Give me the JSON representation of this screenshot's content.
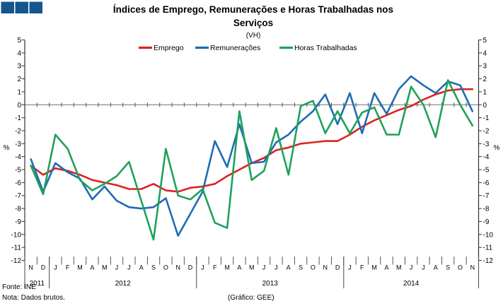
{
  "logo": {
    "color": "#15568e"
  },
  "header": {
    "title_line1": "Índices de Emprego, Remunerações e Horas Trabalhadas nos",
    "title_line2": "Serviços",
    "subtitle": "(VH)"
  },
  "axis": {
    "percent_label": "%"
  },
  "footer": {
    "source": "Fonte: INE",
    "note": "Nota: Dados brutos.",
    "credit": "(Gráfico: GEE)"
  },
  "chart_data": {
    "type": "line",
    "title": "Índices de Emprego, Remunerações e Horas Trabalhadas nos Serviços",
    "subtitle": "(VH)",
    "ylabel": "%",
    "ylim": [
      -12,
      5
    ],
    "ytick_step": 1,
    "grid": "zero-line-only",
    "legend_position": "top-center",
    "x_months": [
      "N",
      "D",
      "J",
      "F",
      "M",
      "A",
      "M",
      "J",
      "J",
      "A",
      "S",
      "O",
      "N",
      "D",
      "J",
      "F",
      "M",
      "A",
      "M",
      "J",
      "J",
      "A",
      "S",
      "O",
      "N",
      "D",
      "J",
      "F",
      "M",
      "A",
      "M",
      "J",
      "J",
      "A",
      "S",
      "O",
      "N"
    ],
    "x_years": [
      {
        "label": "2011",
        "start": 0,
        "count": 2
      },
      {
        "label": "2012",
        "start": 2,
        "count": 12
      },
      {
        "label": "2013",
        "start": 14,
        "count": 12
      },
      {
        "label": "2014",
        "start": 26,
        "count": 11
      }
    ],
    "series": [
      {
        "name": "Emprego",
        "color": "#dd2323",
        "values": [
          -4.7,
          -5.4,
          -4.9,
          -5.1,
          -5.4,
          -5.8,
          -6.0,
          -6.2,
          -6.5,
          -6.5,
          -6.1,
          -6.6,
          -6.7,
          -6.4,
          -6.3,
          -6.1,
          -5.5,
          -5.0,
          -4.5,
          -4.1,
          -3.5,
          -3.3,
          -3.0,
          -2.9,
          -2.8,
          -2.8,
          -2.3,
          -1.7,
          -1.2,
          -0.8,
          -0.4,
          -0.1,
          0.4,
          0.8,
          1.1,
          1.2,
          1.2
        ]
      },
      {
        "name": "Remunerações",
        "color": "#1f6cb4",
        "values": [
          -4.2,
          -6.7,
          -4.5,
          -5.2,
          -5.7,
          -7.3,
          -6.3,
          -7.4,
          -7.9,
          -8.0,
          -7.9,
          -7.2,
          -10.1,
          -8.4,
          -6.7,
          -2.8,
          -4.8,
          -1.5,
          -4.5,
          -4.4,
          -2.9,
          -2.3,
          -1.3,
          -0.5,
          0.8,
          -1.5,
          0.9,
          -2.2,
          0.9,
          -0.7,
          1.2,
          2.2,
          1.5,
          0.9,
          1.8,
          1.5,
          -0.5
        ]
      },
      {
        "name": "Horas Trabalhadas",
        "color": "#1fa15a",
        "values": [
          -4.7,
          -6.9,
          -2.3,
          -3.4,
          -5.8,
          -6.6,
          -6.1,
          -5.5,
          -4.4,
          -7.4,
          -10.4,
          -3.4,
          -7.0,
          -7.3,
          -6.5,
          -9.1,
          -9.5,
          -0.5,
          -5.8,
          -5.1,
          -1.8,
          -5.4,
          -0.1,
          0.3,
          -2.2,
          -0.5,
          -2.2,
          -0.6,
          -0.2,
          -2.3,
          -2.3,
          1.4,
          0.0,
          -2.5,
          1.9,
          0.0,
          -1.6
        ]
      }
    ]
  }
}
